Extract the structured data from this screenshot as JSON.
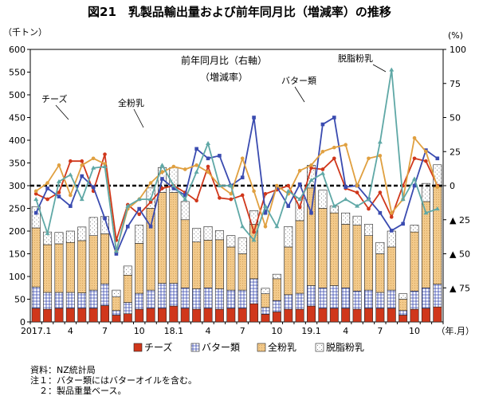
{
  "title": "図21　乳製品輸出量および前年同月比（増減率）の推移",
  "colors": {
    "cheese": "#d0371b",
    "butter": "#3a4bb0",
    "wmp": "#f2c98a",
    "smp": "#ffffff",
    "smp_line": "#5fa8a6",
    "zero_line": "#000000"
  },
  "chart_data": {
    "type": "bar",
    "left_axis": {
      "label": "（千トン）",
      "ylim": [
        0,
        600
      ],
      "ticks": [
        0,
        50,
        100,
        150,
        200,
        250,
        300,
        350,
        400,
        450,
        500,
        550,
        600
      ]
    },
    "right_axis": {
      "label": "(%)",
      "ticks": [
        100,
        75,
        50,
        25,
        0,
        -25,
        -50,
        -75
      ],
      "tick_labels": [
        "100",
        "75",
        "50",
        "25",
        "0",
        "▲ 25",
        "▲ 50",
        "▲ 75"
      ]
    },
    "x_tick_labels": [
      {
        "index": 0,
        "label": "2017.1"
      },
      {
        "index": 3,
        "label": "4"
      },
      {
        "index": 6,
        "label": "7"
      },
      {
        "index": 9,
        "label": "10"
      },
      {
        "index": 12,
        "label": "18.1"
      },
      {
        "index": 15,
        "label": "4"
      },
      {
        "index": 18,
        "label": "7"
      },
      {
        "index": 21,
        "label": "10"
      },
      {
        "index": 24,
        "label": "19.1"
      },
      {
        "index": 27,
        "label": "4"
      },
      {
        "index": 30,
        "label": "7"
      },
      {
        "index": 33,
        "label": "10"
      }
    ],
    "x_unit_label": "（年.月）",
    "months": [
      "2017.1",
      "2017.2",
      "2017.3",
      "2017.4",
      "2017.5",
      "2017.6",
      "2017.7",
      "2017.8",
      "2017.9",
      "2017.10",
      "2017.11",
      "2017.12",
      "2018.1",
      "2018.2",
      "2018.3",
      "2018.4",
      "2018.5",
      "2018.6",
      "2018.7",
      "2018.8",
      "2018.9",
      "2018.10",
      "2018.11",
      "2018.12",
      "2019.1",
      "2019.2",
      "2019.3",
      "2019.4",
      "2019.5",
      "2019.6",
      "2019.7",
      "2019.8",
      "2019.9",
      "2019.10",
      "2019.11",
      "2019.12"
    ],
    "bars": {
      "cheese": [
        30,
        28,
        30,
        30,
        30,
        30,
        36,
        15,
        18,
        28,
        30,
        30,
        35,
        30,
        28,
        30,
        28,
        30,
        30,
        40,
        17,
        22,
        28,
        28,
        35,
        30,
        30,
        30,
        28,
        30,
        30,
        30,
        15,
        28,
        30,
        33
      ],
      "butter": [
        47,
        37,
        35,
        35,
        34,
        40,
        48,
        10,
        25,
        35,
        40,
        55,
        50,
        45,
        45,
        45,
        45,
        40,
        40,
        55,
        15,
        25,
        32,
        35,
        45,
        45,
        50,
        45,
        40,
        40,
        35,
        40,
        10,
        40,
        45,
        50
      ],
      "wmp": [
        130,
        105,
        107,
        110,
        115,
        120,
        110,
        30,
        60,
        110,
        180,
        200,
        200,
        150,
        103,
        105,
        108,
        95,
        80,
        120,
        30,
        48,
        105,
        160,
        215,
        175,
        160,
        140,
        145,
        120,
        85,
        95,
        25,
        130,
        190,
        215
      ],
      "smp": [
        47,
        28,
        25,
        25,
        30,
        40,
        38,
        15,
        20,
        40,
        45,
        55,
        55,
        40,
        30,
        30,
        20,
        25,
        35,
        30,
        12,
        10,
        45,
        50,
        50,
        40,
        15,
        25,
        20,
        25,
        25,
        35,
        12,
        15,
        40,
        48
      ]
    },
    "series_lines": [
      {
        "name": "チーズ",
        "key": "cheese",
        "values": [
          -6,
          -10,
          -5,
          18,
          18,
          -4,
          23,
          -40,
          -14,
          -21,
          -12,
          -2,
          0,
          -5,
          -11,
          14,
          -9,
          -10,
          -7,
          -34,
          -6,
          -3,
          0,
          -16,
          13,
          12,
          20,
          -2,
          -5,
          -17,
          -5,
          -23,
          0,
          20,
          18,
          0
        ]
      },
      {
        "name": "バター類",
        "key": "butter",
        "values": [
          -20,
          -2,
          -8,
          -15,
          7,
          -1,
          -24,
          -50,
          -30,
          -17,
          -30,
          5,
          -2,
          -7,
          27,
          20,
          22,
          0,
          6,
          50,
          -20,
          -1,
          -15,
          1,
          -20,
          45,
          50,
          -1,
          0,
          -10,
          -20,
          -33,
          -28,
          0,
          26,
          20
        ]
      },
      {
        "name": "全粉乳",
        "key": "wmp",
        "values": [
          -4,
          2,
          15,
          -7,
          15,
          20,
          16,
          -48,
          -17,
          -10,
          2,
          10,
          14,
          12,
          15,
          10,
          0,
          -6,
          20,
          -4,
          -30,
          0,
          -6,
          11,
          15,
          25,
          28,
          30,
          0,
          20,
          22,
          -20,
          -10,
          35,
          25,
          -1
        ]
      },
      {
        "name": "脱脂粉乳",
        "key": "smp",
        "values": [
          -10,
          -35,
          3,
          8,
          -10,
          13,
          14,
          -48,
          -15,
          -10,
          -10,
          15,
          0,
          -10,
          10,
          31,
          0,
          0,
          -30,
          -40,
          -15,
          -30,
          -4,
          -10,
          4,
          9,
          -15,
          -10,
          -15,
          -10,
          32,
          85,
          -10,
          5,
          -20,
          -17
        ]
      }
    ],
    "legend": [
      "チーズ",
      "バター類",
      "全粉乳",
      "脱脂粉乳"
    ],
    "annotations": {
      "ratio_title_1": "前年同月比（右軸）",
      "ratio_title_2": "（増減率）",
      "cheese": "チーズ",
      "wmp": "全粉乳",
      "butter": "バター類",
      "smp": "脱脂粉乳"
    }
  },
  "notes": {
    "source": "資料：NZ統計局",
    "note1": "注１：バター類にはバターオイルを含む。",
    "note2": "　２：製品重量ベース。"
  }
}
